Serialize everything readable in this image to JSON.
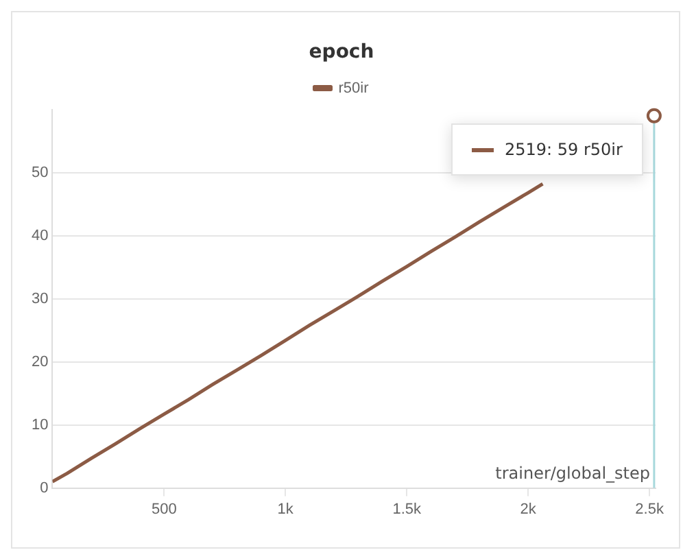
{
  "chart_data": {
    "type": "line",
    "title": "epoch",
    "xlabel": "trainer/global_step",
    "x": [
      40,
      100,
      200,
      300,
      400,
      500,
      600,
      700,
      800,
      900,
      1000,
      1100,
      1200,
      1300,
      1400,
      1500,
      1600,
      1700,
      1800,
      1900,
      2000,
      2060,
      2200,
      2519
    ],
    "series": [
      {
        "name": "r50ir",
        "color": "#8c5b45",
        "values": [
          1,
          2.3,
          4.7,
          7,
          9.4,
          11.7,
          14,
          16.4,
          18.7,
          21,
          23.4,
          25.8,
          28.1,
          30.4,
          32.8,
          35.1,
          37.5,
          39.8,
          42.2,
          44.5,
          46.8,
          48.2,
          null,
          59
        ]
      }
    ],
    "xlim": [
      40,
      2525
    ],
    "xticks": [
      {
        "value": 500,
        "label": "500"
      },
      {
        "value": 1000,
        "label": "1k"
      },
      {
        "value": 1500,
        "label": "1.5k"
      },
      {
        "value": 2000,
        "label": "2k"
      },
      {
        "value": 2500,
        "label": "2.5k"
      }
    ],
    "ylim": [
      0,
      60
    ],
    "yticks": [
      0,
      10,
      20,
      30,
      40,
      50
    ],
    "ref_lines": [
      {
        "axis": "x",
        "value": 2519,
        "color": "#a8d8dc"
      }
    ],
    "annotations": [
      {
        "text": "2519: 59 r50ir",
        "x": 2519,
        "y": 59
      }
    ],
    "grid": "y",
    "legend": "top",
    "marker": "none",
    "line_style": "solid"
  }
}
